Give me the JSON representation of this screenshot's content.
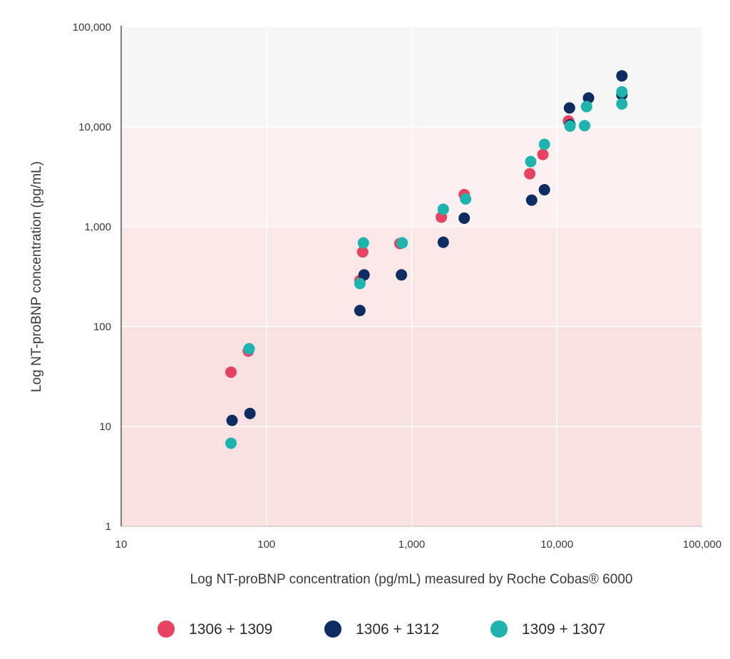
{
  "chart_data": {
    "type": "scatter",
    "title": "",
    "xlabel": "Log NT-proBNP concentration (pg/mL) measured by Roche Cobas® 6000",
    "ylabel": "Log NT-proBNP concentration (pg/mL)",
    "x_scale": "log",
    "y_scale": "log",
    "xlim": [
      10,
      100000
    ],
    "ylim": [
      1,
      100000
    ],
    "x_ticks": [
      10,
      100,
      1000,
      10000,
      100000
    ],
    "x_tick_labels": [
      "10",
      "100",
      "1,000",
      "10,000",
      "100,000"
    ],
    "y_ticks": [
      1,
      10,
      100,
      1000,
      10000,
      100000
    ],
    "y_tick_labels": [
      "1",
      "10",
      "100",
      "1,000",
      "10,000",
      "100,000"
    ],
    "grid": true,
    "legend_position": "bottom",
    "background_bands": [
      {
        "from": 1,
        "to": 100,
        "color": "#f9e1e1"
      },
      {
        "from": 100,
        "to": 1000,
        "color": "#fbe9e9"
      },
      {
        "from": 1000,
        "to": 10000,
        "color": "#fcf0f0"
      },
      {
        "from": 10000,
        "to": 100000,
        "color": "#f6f6f7"
      }
    ],
    "series": [
      {
        "name": "1306 + 1309",
        "color": "#e84262",
        "points": [
          {
            "x": 57,
            "y": 35
          },
          {
            "x": 75,
            "y": 57
          },
          {
            "x": 440,
            "y": 290
          },
          {
            "x": 460,
            "y": 560
          },
          {
            "x": 830,
            "y": 680
          },
          {
            "x": 1600,
            "y": 1250
          },
          {
            "x": 2300,
            "y": 2100
          },
          {
            "x": 6500,
            "y": 3400
          },
          {
            "x": 8000,
            "y": 5300
          },
          {
            "x": 12000,
            "y": 11500
          }
        ]
      },
      {
        "name": "1306 + 1312",
        "color": "#0d2d62",
        "points": [
          {
            "x": 58,
            "y": 11.5
          },
          {
            "x": 77,
            "y": 13.5
          },
          {
            "x": 440,
            "y": 145
          },
          {
            "x": 470,
            "y": 330
          },
          {
            "x": 850,
            "y": 330
          },
          {
            "x": 1650,
            "y": 700
          },
          {
            "x": 2300,
            "y": 1220
          },
          {
            "x": 6700,
            "y": 1850
          },
          {
            "x": 8200,
            "y": 2350
          },
          {
            "x": 12200,
            "y": 15500
          },
          {
            "x": 16500,
            "y": 19500
          },
          {
            "x": 28000,
            "y": 32500
          },
          {
            "x": 12300,
            "y": 10500
          },
          {
            "x": 28000,
            "y": 21000
          }
        ]
      },
      {
        "name": "1309 + 1307",
        "color": "#1fb3ad",
        "points": [
          {
            "x": 57,
            "y": 6.8
          },
          {
            "x": 76,
            "y": 60
          },
          {
            "x": 440,
            "y": 270
          },
          {
            "x": 465,
            "y": 690
          },
          {
            "x": 860,
            "y": 690
          },
          {
            "x": 1650,
            "y": 1500
          },
          {
            "x": 2350,
            "y": 1900
          },
          {
            "x": 6600,
            "y": 4500
          },
          {
            "x": 8200,
            "y": 6700
          },
          {
            "x": 12300,
            "y": 10200
          },
          {
            "x": 15500,
            "y": 10300
          },
          {
            "x": 16000,
            "y": 16000
          },
          {
            "x": 28000,
            "y": 17000
          },
          {
            "x": 28000,
            "y": 22500
          }
        ]
      }
    ]
  }
}
